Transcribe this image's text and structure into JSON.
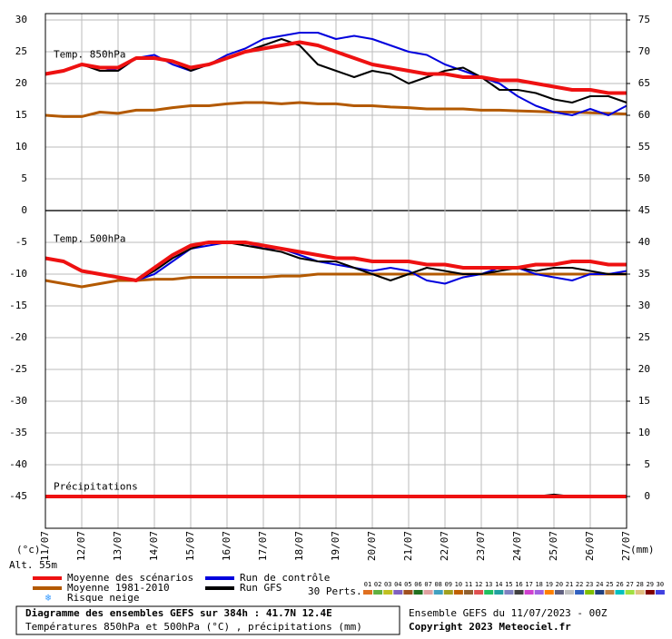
{
  "chart_data": {
    "type": "line",
    "x": [
      0,
      0.5,
      1,
      1.5,
      2,
      2.5,
      3,
      3.5,
      4,
      4.5,
      5,
      5.5,
      6,
      6.5,
      7,
      7.5,
      8,
      8.5,
      9,
      9.5,
      10,
      10.5,
      11,
      11.5,
      12,
      12.5,
      13,
      13.5,
      14,
      14.5,
      15,
      15.5,
      16
    ],
    "xlim": [
      0,
      16
    ],
    "xticks": [
      {
        "value": 0,
        "label": "11/07"
      },
      {
        "value": 1,
        "label": "12/07"
      },
      {
        "value": 2,
        "label": "13/07"
      },
      {
        "value": 3,
        "label": "14/07"
      },
      {
        "value": 4,
        "label": "15/07"
      },
      {
        "value": 5,
        "label": "16/07"
      },
      {
        "value": 6,
        "label": "17/07"
      },
      {
        "value": 7,
        "label": "18/07"
      },
      {
        "value": 8,
        "label": "19/07"
      },
      {
        "value": 9,
        "label": "20/07"
      },
      {
        "value": 10,
        "label": "21/07"
      },
      {
        "value": 11,
        "label": "22/07"
      },
      {
        "value": 12,
        "label": "23/07"
      },
      {
        "value": 13,
        "label": "24/07"
      },
      {
        "value": 14,
        "label": "25/07"
      },
      {
        "value": 15,
        "label": "26/07"
      },
      {
        "value": 16,
        "label": "27/07"
      }
    ],
    "ylim": [
      -50,
      31
    ],
    "yticks": [
      30,
      25,
      20,
      15,
      10,
      5,
      0,
      -5,
      -10,
      -15,
      -20,
      -25,
      -30,
      -35,
      -40,
      -45
    ],
    "y2lim": [
      -5,
      76
    ],
    "y2ticks": [
      75,
      70,
      65,
      60,
      55,
      50,
      45,
      40,
      35,
      30,
      25,
      20,
      15,
      10,
      5,
      0
    ],
    "ylabel": "(°c)",
    "y2label": "(mm)",
    "altitude": "Alt. 55m",
    "grid": true,
    "panels": [
      {
        "label": "Temp. 850hPa",
        "series": [
          {
            "color": "#b35900",
            "width": 3,
            "values": [
              15,
              14.8,
              14.8,
              15.5,
              15.3,
              15.8,
              15.8,
              16.2,
              16.5,
              16.5,
              16.8,
              17,
              17,
              16.8,
              17,
              16.8,
              16.8,
              16.5,
              16.5,
              16.3,
              16.2,
              16,
              16,
              16,
              15.8,
              15.8,
              15.7,
              15.6,
              15.5,
              15.5,
              15.4,
              15.3,
              15.2
            ]
          },
          {
            "color": "#0000dd",
            "width": 2,
            "values": [
              21.5,
              22,
              23,
              22.5,
              22,
              24,
              24.5,
              23,
              22,
              23,
              24.5,
              25.5,
              27,
              27.5,
              28,
              28,
              27,
              27.5,
              27,
              26,
              25,
              24.5,
              23,
              22,
              21,
              20,
              18,
              16.5,
              15.5,
              15,
              16,
              15,
              16.5
            ]
          },
          {
            "color": "#000000",
            "width": 2,
            "values": [
              21.5,
              22,
              23,
              22,
              22,
              24,
              24,
              23.5,
              22,
              23,
              24,
              25,
              26,
              27,
              26,
              23,
              22,
              21,
              22,
              21.5,
              20,
              21,
              22,
              22.5,
              21,
              19,
              19,
              18.5,
              17.5,
              17,
              18,
              18,
              17
            ]
          },
          {
            "color": "#ee1111",
            "width": 4,
            "values": [
              21.5,
              22,
              23,
              22.5,
              22.5,
              24,
              24,
              23.5,
              22.5,
              23,
              24,
              25,
              25.5,
              26,
              26.5,
              26,
              25,
              24,
              23,
              22.5,
              22,
              21.5,
              21.5,
              21,
              21,
              20.5,
              20.5,
              20,
              19.5,
              19,
              19,
              18.5,
              18.5
            ]
          }
        ]
      },
      {
        "label": "Temp. 500hPa",
        "series": [
          {
            "color": "#b35900",
            "width": 3,
            "values": [
              -11,
              -11.5,
              -12,
              -11.5,
              -11,
              -11,
              -10.8,
              -10.8,
              -10.5,
              -10.5,
              -10.5,
              -10.5,
              -10.5,
              -10.3,
              -10.3,
              -10,
              -10,
              -10,
              -10,
              -10,
              -10,
              -10,
              -10,
              -10,
              -10,
              -10,
              -10,
              -10,
              -10,
              -10,
              -10,
              -10,
              -10
            ]
          },
          {
            "color": "#0000dd",
            "width": 2,
            "values": [
              -7.5,
              -8,
              -9.5,
              -10,
              -10.5,
              -11,
              -10,
              -8,
              -6,
              -5.5,
              -5,
              -5,
              -6,
              -6,
              -7,
              -8,
              -8.5,
              -9,
              -9.5,
              -9,
              -9.5,
              -11,
              -11.5,
              -10.5,
              -10,
              -9,
              -9,
              -10,
              -10.5,
              -11,
              -10,
              -10,
              -9.5
            ]
          },
          {
            "color": "#000000",
            "width": 2,
            "values": [
              -7.5,
              -8,
              -9.5,
              -10,
              -10.5,
              -11,
              -9.5,
              -7.5,
              -6,
              -5,
              -5,
              -5.5,
              -6,
              -6.5,
              -7.5,
              -8,
              -8,
              -9,
              -10,
              -11,
              -10,
              -9,
              -9.5,
              -10,
              -10,
              -9.5,
              -9,
              -9.5,
              -9,
              -9,
              -9.5,
              -10,
              -10
            ]
          },
          {
            "color": "#ee1111",
            "width": 4,
            "values": [
              -7.5,
              -8,
              -9.5,
              -10,
              -10.5,
              -11,
              -9,
              -7,
              -5.5,
              -5,
              -5,
              -5,
              -5.5,
              -6,
              -6.5,
              -7,
              -7.5,
              -7.5,
              -8,
              -8,
              -8,
              -8.5,
              -8.5,
              -9,
              -9,
              -9,
              -9,
              -8.5,
              -8.5,
              -8,
              -8,
              -8.5,
              -8.5
            ]
          }
        ]
      },
      {
        "label": "Précipitations",
        "axis": "y2",
        "series": [
          {
            "color": "#000000",
            "width": 2,
            "values": [
              0,
              0,
              0,
              0,
              0,
              0,
              0,
              0,
              0,
              0,
              0,
              0,
              0,
              0,
              0,
              0,
              0,
              0,
              0,
              0,
              0,
              0,
              0,
              0,
              0,
              0,
              0,
              0,
              0.3,
              0,
              0,
              0,
              0
            ]
          },
          {
            "color": "#ee1111",
            "width": 4,
            "values": [
              0,
              0,
              0,
              0,
              0,
              0,
              0,
              0,
              0,
              0,
              0,
              0,
              0,
              0,
              0,
              0,
              0,
              0,
              0,
              0,
              0,
              0,
              0,
              0,
              0,
              0,
              0,
              0,
              0,
              0,
              0,
              0,
              0
            ]
          }
        ]
      }
    ],
    "legend": [
      {
        "label": "Moyenne des scénarios",
        "color": "#ee1111"
      },
      {
        "label": "Moyenne 1981-2010",
        "color": "#b35900"
      },
      {
        "label": "Risque neige",
        "color": "#3399ff"
      },
      {
        "label": "Run de contrôle",
        "color": "#0000dd"
      },
      {
        "label": "Run GFS",
        "color": "#000000"
      }
    ],
    "perts_label": "30 Perts.",
    "perts": [
      {
        "label": "01",
        "color": "#e07020"
      },
      {
        "label": "02",
        "color": "#60b040"
      },
      {
        "label": "03",
        "color": "#c0c020"
      },
      {
        "label": "04",
        "color": "#8060c0"
      },
      {
        "label": "05",
        "color": "#a05020"
      },
      {
        "label": "06",
        "color": "#207020"
      },
      {
        "label": "07",
        "color": "#e0a0a0"
      },
      {
        "label": "08",
        "color": "#40a0c0"
      },
      {
        "label": "09",
        "color": "#a0a020"
      },
      {
        "label": "10",
        "color": "#c06000"
      },
      {
        "label": "11",
        "color": "#906030"
      },
      {
        "label": "12",
        "color": "#e05050"
      },
      {
        "label": "13",
        "color": "#20c060"
      },
      {
        "label": "14",
        "color": "#20a0a0"
      },
      {
        "label": "15",
        "color": "#8080c0"
      },
      {
        "label": "16",
        "color": "#404040"
      },
      {
        "label": "17",
        "color": "#d040d0"
      },
      {
        "label": "18",
        "color": "#a060e0"
      },
      {
        "label": "19",
        "color": "#ff8000"
      },
      {
        "label": "20",
        "color": "#606080"
      },
      {
        "label": "21",
        "color": "#c0c0c0"
      },
      {
        "label": "22",
        "color": "#3060c0"
      },
      {
        "label": "23",
        "color": "#80c000"
      },
      {
        "label": "24",
        "color": "#204080"
      },
      {
        "label": "25",
        "color": "#c08040"
      },
      {
        "label": "26",
        "color": "#00c0c0"
      },
      {
        "label": "27",
        "color": "#a0e040"
      },
      {
        "label": "28",
        "color": "#e0c080"
      },
      {
        "label": "29",
        "color": "#800000"
      },
      {
        "label": "30",
        "color": "#4040e0"
      }
    ],
    "footer": {
      "title": "Diagramme des ensembles GEFS sur 384h : 41.7N 12.4E",
      "subtitle": "Températures 850hPa et 500hPa (°C) , précipitations (mm)",
      "run": "Ensemble GEFS du 11/07/2023 - 00Z",
      "copyright": "Copyright 2023 Meteociel.fr"
    }
  }
}
